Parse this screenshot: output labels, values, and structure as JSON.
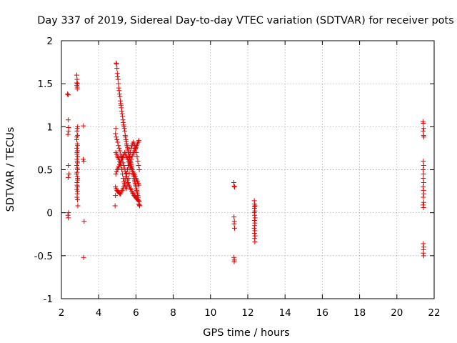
{
  "chart_data": {
    "type": "scatter",
    "title": "Day 337 of 2019, Sidereal Day-to-day VTEC variation (SDTVAR) for receiver pots",
    "xlabel": "GPS time / hours",
    "ylabel": "SDTVAR / TECUs",
    "xlim": [
      2,
      22
    ],
    "ylim": [
      -1,
      2
    ],
    "xticks": [
      2,
      4,
      6,
      8,
      10,
      12,
      14,
      16,
      18,
      20,
      22
    ],
    "yticks": [
      -1,
      -0.5,
      0,
      0.5,
      1,
      1.5,
      2
    ],
    "ytick_labels": [
      "-1",
      "-0.5",
      "0",
      "0.5",
      "1",
      "1.5",
      "2"
    ],
    "grid": true,
    "marker": "+",
    "marker_color": "#e00000",
    "series": [
      {
        "name": "pots",
        "x": [
          2.33,
          2.36,
          2.38,
          2.35,
          2.37,
          2.4,
          2.36,
          2.38,
          2.35,
          2.37,
          2.36,
          2.38,
          2.82,
          2.84,
          2.86,
          2.83,
          2.85,
          2.87,
          2.84,
          2.86,
          2.82,
          2.85,
          2.83,
          2.86,
          2.84,
          2.87,
          2.85,
          2.83,
          2.86,
          2.84,
          2.82,
          2.85,
          2.87,
          2.84,
          2.86,
          2.83,
          2.85,
          2.84,
          2.86,
          2.88,
          2.85,
          2.83,
          2.86,
          2.84,
          2.85,
          2.87,
          2.84,
          2.86,
          2.83,
          2.85,
          2.84,
          2.86,
          3.18,
          3.2,
          3.17,
          3.22,
          3.19,
          4.88,
          4.9,
          4.92,
          4.94,
          4.96,
          4.98,
          5.0,
          5.02,
          5.04,
          5.06,
          5.08,
          5.1,
          5.12,
          5.14,
          5.16,
          5.18,
          5.2,
          5.22,
          5.24,
          5.26,
          5.28,
          5.3,
          5.32,
          5.34,
          5.36,
          5.38,
          5.4,
          5.42,
          5.44,
          5.46,
          5.48,
          5.5,
          5.52,
          5.54,
          5.56,
          5.58,
          5.6,
          5.62,
          5.64,
          5.66,
          5.68,
          5.7,
          5.72,
          5.74,
          5.76,
          5.78,
          5.8,
          5.82,
          5.84,
          5.86,
          5.88,
          5.9,
          5.92,
          5.94,
          5.96,
          5.98,
          6.0,
          6.02,
          6.04,
          6.06,
          6.08,
          6.1,
          6.12,
          6.14,
          6.16,
          6.18,
          6.2,
          4.9,
          4.94,
          4.98,
          5.02,
          5.06,
          5.1,
          5.14,
          5.18,
          5.22,
          5.26,
          5.3,
          5.34,
          5.38,
          5.42,
          5.46,
          5.5,
          5.54,
          5.58,
          5.62,
          5.66,
          5.7,
          5.74,
          5.78,
          5.82,
          5.86,
          5.9,
          5.94,
          5.98,
          6.02,
          6.06,
          6.1,
          6.14,
          6.18,
          4.9,
          4.94,
          4.98,
          5.02,
          5.06,
          5.1,
          5.14,
          5.18,
          5.22,
          5.26,
          5.3,
          5.34,
          5.38,
          5.42,
          5.46,
          5.5,
          5.54,
          5.58,
          5.62,
          5.66,
          5.7,
          5.74,
          5.78,
          5.82,
          5.86,
          5.9,
          5.94,
          5.98,
          6.02,
          6.06,
          6.1,
          6.14,
          6.18,
          4.92,
          4.96,
          5.0,
          5.04,
          5.08,
          5.12,
          5.16,
          5.2,
          5.24,
          5.28,
          5.32,
          5.36,
          5.4,
          5.44,
          5.48,
          5.52,
          5.56,
          5.6,
          5.64,
          5.68,
          5.72,
          5.76,
          5.8,
          5.84,
          5.88,
          5.92,
          5.96,
          6.0,
          6.04,
          6.08,
          6.12,
          6.16,
          4.92,
          4.96,
          5.0,
          5.04,
          5.08,
          5.12,
          5.16,
          5.2,
          5.24,
          5.28,
          5.32,
          5.36,
          5.4,
          5.44,
          5.48,
          5.52,
          5.56,
          5.6,
          5.64,
          5.68,
          5.72,
          5.76,
          5.8,
          5.84,
          5.88,
          5.92,
          5.96,
          6.0,
          6.04,
          6.08,
          6.12,
          6.16,
          11.25,
          11.27,
          11.29,
          11.26,
          11.28,
          11.27,
          11.29,
          11.26,
          11.28,
          11.27,
          12.35,
          12.37,
          12.39,
          12.36,
          12.38,
          12.35,
          12.37,
          12.39,
          12.36,
          12.38,
          12.37,
          12.35,
          12.38,
          12.36,
          12.39,
          12.37,
          12.38,
          12.36,
          21.4,
          21.42,
          21.44,
          21.41,
          21.43,
          21.45,
          21.42,
          21.44,
          21.41,
          21.43,
          21.42,
          21.44,
          21.41,
          21.43,
          21.45,
          21.42,
          21.44,
          21.41,
          21.43,
          21.42,
          21.44,
          21.43,
          21.42,
          21.44
        ],
        "y": [
          1.38,
          1.08,
          0.95,
          0.91,
          0.55,
          0.45,
          0.41,
          0.0,
          -0.03,
          -0.06,
          1.37,
          0.99,
          1.6,
          1.55,
          1.5,
          1.48,
          1.44,
          1.0,
          0.95,
          0.9,
          0.85,
          0.8,
          0.75,
          0.72,
          0.68,
          0.65,
          0.6,
          0.55,
          0.5,
          0.47,
          0.45,
          0.42,
          0.38,
          0.35,
          0.3,
          0.27,
          0.22,
          0.18,
          0.15,
          0.08,
          0.98,
          0.88,
          0.78,
          0.62,
          0.52,
          0.4,
          0.32,
          0.25,
          1.51,
          1.46,
          0.7,
          0.58,
          1.01,
          0.6,
          0.62,
          -0.1,
          -0.52,
          0.08,
          0.2,
          0.98,
          1.74,
          1.73,
          1.68,
          1.62,
          1.58,
          1.55,
          1.5,
          1.45,
          1.42,
          1.38,
          1.35,
          1.3,
          1.27,
          1.25,
          1.22,
          1.18,
          1.15,
          1.12,
          1.08,
          1.05,
          1.02,
          1.0,
          0.98,
          0.95,
          0.9,
          0.88,
          0.85,
          0.83,
          0.8,
          0.78,
          0.76,
          0.74,
          0.72,
          0.7,
          0.68,
          0.66,
          0.64,
          0.62,
          0.6,
          0.58,
          0.56,
          0.54,
          0.52,
          0.5,
          0.48,
          0.46,
          0.44,
          0.42,
          0.4,
          0.38,
          0.36,
          0.34,
          0.32,
          0.3,
          0.28,
          0.26,
          0.24,
          0.22,
          0.2,
          0.18,
          0.14,
          0.1,
          0.09,
          0.08,
          0.92,
          0.88,
          0.85,
          0.82,
          0.78,
          0.75,
          0.72,
          0.68,
          0.65,
          0.62,
          0.58,
          0.55,
          0.52,
          0.48,
          0.45,
          0.42,
          0.38,
          0.35,
          0.32,
          0.3,
          0.28,
          0.27,
          0.25,
          0.23,
          0.22,
          0.2,
          0.19,
          0.18,
          0.17,
          0.16,
          0.15,
          0.14,
          0.13,
          0.3,
          0.28,
          0.26,
          0.25,
          0.24,
          0.23,
          0.22,
          0.22,
          0.24,
          0.26,
          0.28,
          0.3,
          0.34,
          0.38,
          0.42,
          0.46,
          0.5,
          0.55,
          0.6,
          0.65,
          0.7,
          0.75,
          0.78,
          0.8,
          0.82,
          0.8,
          0.78,
          0.75,
          0.7,
          0.65,
          0.6,
          0.55,
          0.5,
          0.7,
          0.68,
          0.66,
          0.64,
          0.62,
          0.6,
          0.58,
          0.55,
          0.5,
          0.45,
          0.4,
          0.36,
          0.32,
          0.3,
          0.28,
          0.3,
          0.34,
          0.4,
          0.46,
          0.52,
          0.58,
          0.62,
          0.66,
          0.68,
          0.7,
          0.72,
          0.74,
          0.76,
          0.78,
          0.8,
          0.82,
          0.84,
          0.45,
          0.48,
          0.5,
          0.52,
          0.54,
          0.56,
          0.58,
          0.6,
          0.62,
          0.64,
          0.66,
          0.68,
          0.7,
          0.68,
          0.66,
          0.64,
          0.62,
          0.6,
          0.58,
          0.56,
          0.54,
          0.52,
          0.5,
          0.48,
          0.46,
          0.44,
          0.42,
          0.4,
          0.38,
          0.36,
          0.34,
          0.32,
          0.35,
          0.31,
          0.3,
          -0.05,
          -0.1,
          -0.13,
          -0.18,
          -0.52,
          -0.55,
          -0.57,
          0.14,
          0.1,
          0.08,
          0.05,
          0.02,
          0.0,
          -0.03,
          -0.06,
          -0.09,
          -0.12,
          -0.15,
          -0.18,
          -0.21,
          -0.24,
          -0.27,
          -0.3,
          -0.34,
          0.07,
          1.06,
          1.04,
          0.98,
          0.95,
          0.9,
          0.88,
          0.6,
          0.55,
          0.5,
          0.45,
          0.4,
          0.35,
          0.3,
          0.26,
          0.22,
          0.18,
          0.12,
          0.09,
          0.06,
          -0.36,
          -0.4,
          -0.43,
          -0.47,
          -0.5
        ]
      }
    ]
  }
}
